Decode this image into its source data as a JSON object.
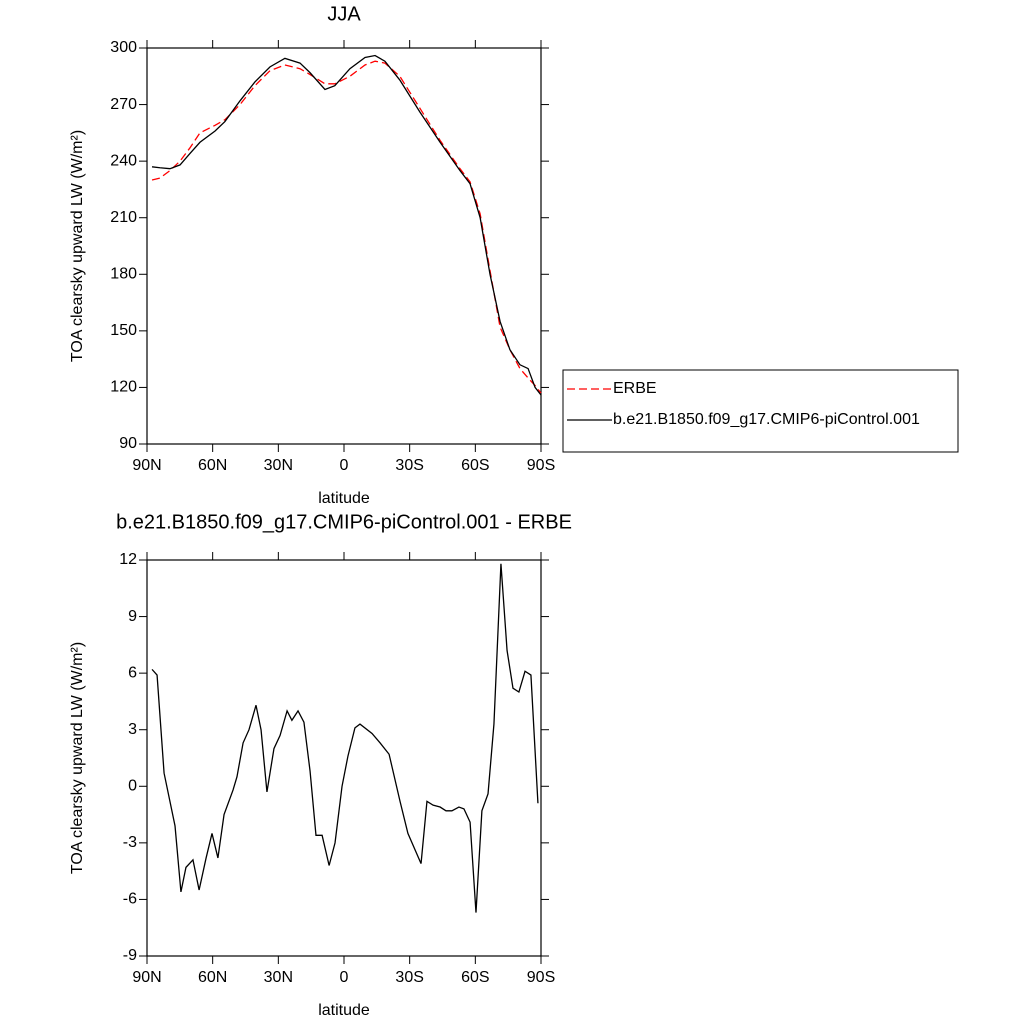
{
  "chart_data": [
    {
      "type": "line",
      "title": "JJA",
      "x_label": "latitude",
      "y_label": "TOA clearsky upward LW (W/m²)",
      "xlim": [
        90,
        -90
      ],
      "xticks": [
        {
          "value": 90,
          "label": "90N"
        },
        {
          "value": 60,
          "label": "60N"
        },
        {
          "value": 30,
          "label": "30N"
        },
        0,
        {
          "value": -30,
          "label": "30S"
        },
        {
          "value": -60,
          "label": "60S"
        },
        {
          "value": -90,
          "label": "90S"
        }
      ],
      "ylim": [
        90,
        300
      ],
      "yticks": [
        90,
        120,
        150,
        180,
        210,
        240,
        270,
        300
      ],
      "x": [
        87.7,
        84.1,
        79.5,
        74.9,
        70.4,
        65.8,
        58.9,
        54.4,
        47.5,
        40.7,
        33.8,
        27.0,
        20.1,
        15.6,
        8.7,
        4.2,
        -2.7,
        -9.6,
        -14.2,
        -18.7,
        -25.5,
        -34.7,
        -43.9,
        -53.0,
        -57.6,
        -62.2,
        -66.7,
        -71.3,
        -75.8,
        -80.4,
        -84.1,
        -87.3,
        -90
      ],
      "series": [
        {
          "name": "ERBE",
          "color": "#ff0000",
          "line_style": "dashed",
          "values": [
            230,
            231,
            235,
            240,
            247,
            255,
            259,
            262,
            270,
            280,
            288,
            291,
            289,
            286,
            281,
            281,
            285,
            291,
            293,
            292,
            285,
            268,
            251,
            236,
            229,
            212,
            182,
            152,
            140,
            130,
            125,
            121,
            117
          ]
        },
        {
          "name": "b.e21.B1850.f09_g17.CMIP6-piControl.001",
          "color": "#000000",
          "line_style": "solid",
          "values": [
            237,
            236.5,
            236,
            238,
            244,
            250,
            256,
            261,
            272,
            282,
            290,
            294.5,
            292,
            287,
            278,
            280,
            289,
            295,
            296,
            293,
            283,
            266,
            250,
            235,
            228,
            210,
            180,
            155,
            140,
            132,
            130,
            120,
            116
          ]
        }
      ],
      "legend": "right"
    },
    {
      "type": "line",
      "title": "b.e21.B1850.f09_g17.CMIP6-piControl.001 - ERBE",
      "x_label": "latitude",
      "y_label": "TOA clearsky upward LW (W/m²)",
      "xlim": [
        90,
        -90
      ],
      "xticks": [
        {
          "value": 90,
          "label": "90N"
        },
        {
          "value": 60,
          "label": "60N"
        },
        {
          "value": 30,
          "label": "30N"
        },
        0,
        {
          "value": -30,
          "label": "30S"
        },
        {
          "value": -60,
          "label": "60S"
        },
        {
          "value": -90,
          "label": "90S"
        }
      ],
      "ylim": [
        -9,
        12
      ],
      "yticks": [
        -9,
        -6,
        -3,
        0,
        3,
        6,
        9,
        12
      ],
      "x": [
        87.7,
        85.4,
        82.2,
        77.2,
        74.5,
        72.2,
        69.0,
        66.2,
        63.0,
        60.3,
        57.6,
        54.8,
        50.7,
        48.9,
        46.1,
        43.4,
        40.2,
        37.9,
        35.2,
        32.0,
        29.2,
        26.0,
        23.8,
        21.0,
        18.3,
        15.5,
        12.8,
        10.0,
        6.8,
        4.1,
        0.9,
        -1.8,
        -5.0,
        -7.3,
        -12.8,
        -16.5,
        -20.6,
        -25.6,
        -29.2,
        -35.2,
        -37.9,
        -40.7,
        -43.9,
        -46.6,
        -49.3,
        -52.5,
        -54.8,
        -57.6,
        -60.3,
        -63.0,
        -65.8,
        -68.5,
        -71.7,
        -74.5,
        -77.2,
        -79.9,
        -82.7,
        -85.4,
        -88.6
      ],
      "color": "#000000",
      "values": [
        6.2,
        5.9,
        0.7,
        -2.1,
        -5.6,
        -4.3,
        -3.9,
        -5.5,
        -3.8,
        -2.5,
        -3.8,
        -1.5,
        -0.2,
        0.5,
        2.3,
        3.0,
        4.3,
        3.0,
        -0.3,
        2.0,
        2.7,
        4.0,
        3.5,
        4.0,
        3.4,
        0.8,
        -2.6,
        -2.6,
        -4.2,
        -3.0,
        0,
        1.6,
        3.1,
        3.3,
        2.8,
        2.3,
        1.7,
        -0.8,
        -2.5,
        -4.1,
        -0.8,
        -1.0,
        -1.1,
        -1.3,
        -1.3,
        -1.1,
        -1.2,
        -1.9,
        -6.7,
        -1.3,
        -0.4,
        3.3,
        11.8,
        7.2,
        5.2,
        5.0,
        6.1,
        5.9,
        -0.9
      ]
    }
  ]
}
